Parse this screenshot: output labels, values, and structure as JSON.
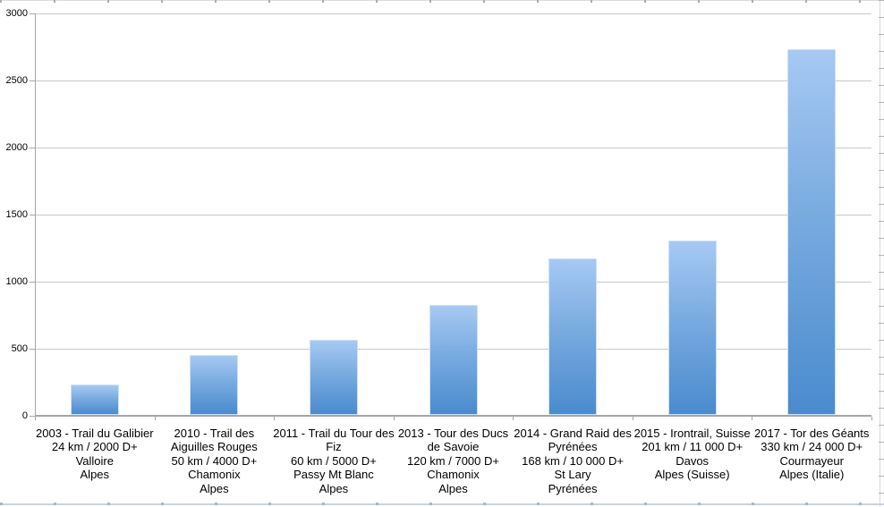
{
  "chart_data": {
    "type": "bar",
    "title": "",
    "xlabel": "",
    "ylabel": "",
    "categories": [
      "2003 - Trail du Galibier\n24 km / 2000 D+\nValloire\nAlpes",
      "2010 - Trail des\nAiguilles Rouges\n50 km / 4000 D+\nChamonix\nAlpes",
      "2011 - Trail du Tour des\nFiz\n60 km / 5000 D+\nPassy Mt Blanc\nAlpes",
      "2013 - Tour des Ducs\nde Savoie\n120 km / 7000 D+\nChamonix\nAlpes",
      "2014 - Grand Raid des\nPyrénées\n168 km / 10 000 D+\nSt Lary\nPyrénées",
      "2015 - Irontrail, Suisse\n201 km / 11 000 D+\nDavos\nAlpes (Suisse)",
      "2017 - Tor des Géants\n330 km / 24 000 D+\nCourmayeur\nAlpes (Italie)"
    ],
    "values": [
      230,
      450,
      560,
      820,
      1170,
      1300,
      2730
    ],
    "yticks": [
      0,
      500,
      1000,
      1500,
      2000,
      2500,
      3000
    ],
    "ylim": [
      0,
      3000
    ],
    "grid": true,
    "legend": false,
    "bar_color_top": "#a7c9f3",
    "bar_color_bottom": "#4a8bce",
    "gridline_color": "#c9c9c9",
    "axis_color": "#a6a6a6"
  }
}
